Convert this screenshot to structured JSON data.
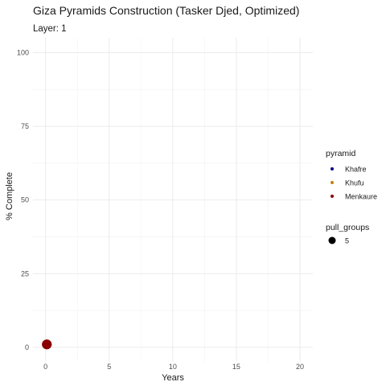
{
  "chart_data": {
    "type": "scatter",
    "title": "Giza Pyramids Construction (Tasker Djed, Optimized)",
    "subtitle": "Layer: 1",
    "xlabel": "Years",
    "ylabel": "% Complete",
    "xlim": [
      0,
      20
    ],
    "ylim": [
      0,
      100
    ],
    "x_ticks": [
      0,
      5,
      10,
      15,
      20
    ],
    "y_ticks": [
      0,
      25,
      50,
      75,
      100
    ],
    "grid": true,
    "legend": {
      "placement": "right",
      "color_title": "pyramid",
      "color_entries": [
        {
          "name": "Khafre",
          "color": "#00008b"
        },
        {
          "name": "Khufu",
          "color": "#b8860b"
        },
        {
          "name": "Menkaure",
          "color": "#8b0000"
        }
      ],
      "size_title": "pull_groups",
      "size_entries": [
        {
          "label": "5",
          "value": 5
        }
      ]
    },
    "series": [
      {
        "name": "Khafre",
        "color": "#00008b",
        "points": [
          {
            "x": 0.1,
            "y": 1,
            "pull_groups": 5
          }
        ]
      },
      {
        "name": "Khufu",
        "color": "#b8860b",
        "points": [
          {
            "x": 0.1,
            "y": 1,
            "pull_groups": 5
          }
        ]
      },
      {
        "name": "Menkaure",
        "color": "#8b0000",
        "points": [
          {
            "x": 0.1,
            "y": 1,
            "pull_groups": 5
          }
        ]
      }
    ]
  }
}
